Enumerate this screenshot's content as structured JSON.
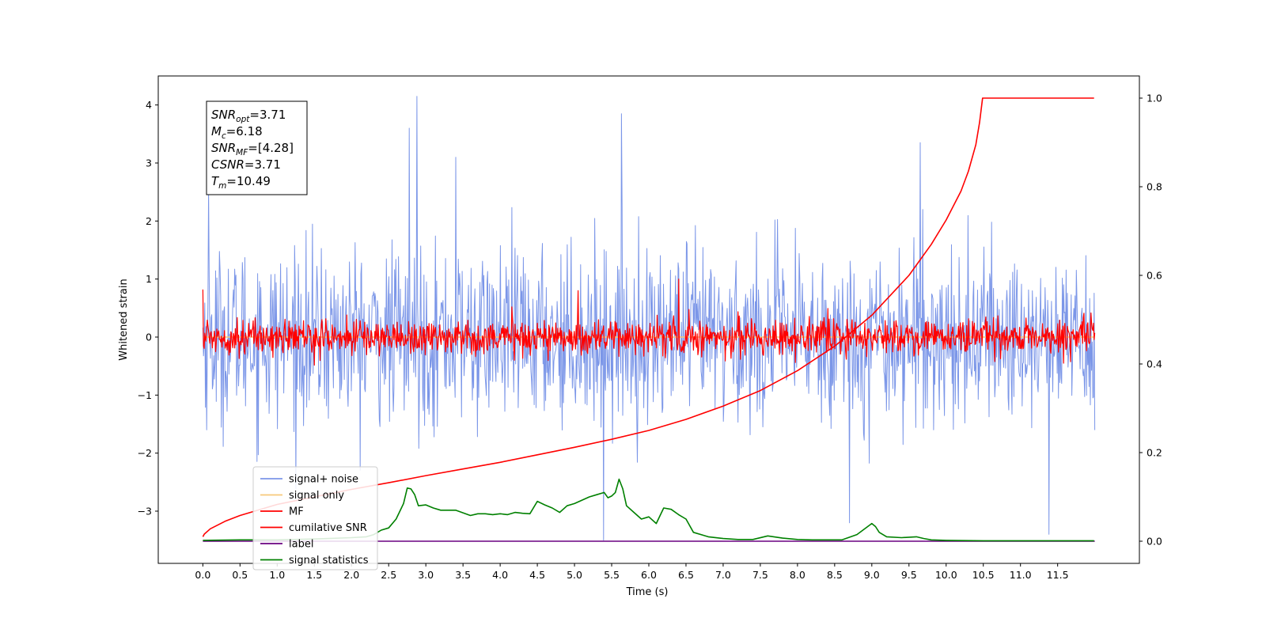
{
  "chart_data": {
    "type": "line",
    "xlabel": "Time (s)",
    "ylabel": "Whitened strain",
    "xlim": [
      -0.6,
      12.6
    ],
    "ylim": [
      -3.9,
      4.5
    ],
    "y2lim": [
      -0.05,
      1.05
    ],
    "x_ticks": [
      0.0,
      0.5,
      1.0,
      1.5,
      2.0,
      2.5,
      3.0,
      3.5,
      4.0,
      4.5,
      5.0,
      5.5,
      6.0,
      6.5,
      7.0,
      7.5,
      8.0,
      8.5,
      9.0,
      9.5,
      10.0,
      10.5,
      11.0,
      11.5
    ],
    "x_tick_labels": [
      "0.0",
      "0.5",
      "1.0",
      "1.5",
      "2.0",
      "2.5",
      "3.0",
      "3.5",
      "4.0",
      "4.5",
      "5.0",
      "5.5",
      "6.0",
      "6.5",
      "7.0",
      "7.5",
      "8.0",
      "8.5",
      "9.0",
      "9.5",
      "10.0",
      "10.5",
      "11.0",
      "11.5"
    ],
    "y_ticks": [
      -3,
      -2,
      -1,
      0,
      1,
      2,
      3,
      4
    ],
    "y_tick_labels": [
      "−3",
      "−2",
      "−1",
      "0",
      "1",
      "2",
      "3",
      "4"
    ],
    "y2_ticks": [
      0.0,
      0.2,
      0.4,
      0.6,
      0.8,
      1.0
    ],
    "y2_tick_labels": [
      "0.0",
      "0.2",
      "0.4",
      "0.6",
      "0.8",
      "1.0"
    ],
    "grid": false,
    "legend_position": "lower-left",
    "stats_box": {
      "lines": [
        {
          "sym": "SNR",
          "sub": "opt",
          "value": "=3.71"
        },
        {
          "sym": "M",
          "sub": "c",
          "value": "=6.18"
        },
        {
          "sym": "SNR",
          "sub": "MF",
          "value": "=[4.28]"
        },
        {
          "sym": "CSNR",
          "sub": "",
          "value": "=3.71"
        },
        {
          "sym": "T",
          "sub": "m",
          "value": "=10.49"
        }
      ]
    },
    "series": [
      {
        "name": "signal+ noise",
        "axis": "left",
        "color": "#7b96e8",
        "style": "noise",
        "x_range": [
          0,
          12
        ],
        "std": 0.75,
        "extremes": [
          [
            2.88,
            4.15
          ],
          [
            5.63,
            3.85
          ],
          [
            2.78,
            3.6
          ],
          [
            5.39,
            -3.5
          ],
          [
            11.38,
            -3.4
          ],
          [
            0.08,
            2.55
          ],
          [
            3.4,
            3.1
          ],
          [
            8.7,
            -3.2
          ],
          [
            9.65,
            3.35
          ]
        ]
      },
      {
        "name": "signal only",
        "axis": "left",
        "color": "#f7c97a",
        "style": "flat",
        "x_range": [
          0,
          12
        ],
        "value": 0.0
      },
      {
        "name": "MF",
        "axis": "left",
        "color": "#ff0000",
        "style": "noise",
        "x_range": [
          0,
          12
        ],
        "std": 0.15,
        "extremes": [
          [
            0.0,
            0.82
          ],
          [
            6.4,
            1.0
          ],
          [
            5.05,
            0.8
          ]
        ]
      },
      {
        "name": "cumilative SNR",
        "axis": "right",
        "color": "#ff0000",
        "style": "line",
        "x": [
          0.0,
          0.02,
          0.1,
          0.3,
          0.5,
          1.0,
          1.5,
          2.0,
          2.5,
          3.0,
          3.5,
          4.0,
          4.5,
          5.0,
          5.5,
          6.0,
          6.5,
          7.0,
          7.5,
          8.0,
          8.5,
          9.0,
          9.5,
          9.8,
          10.0,
          10.2,
          10.3,
          10.4,
          10.45,
          10.49,
          11.0,
          11.5,
          11.99
        ],
        "y": [
          0.01,
          0.016,
          0.028,
          0.045,
          0.058,
          0.083,
          0.1,
          0.117,
          0.132,
          0.148,
          0.163,
          0.178,
          0.195,
          0.212,
          0.23,
          0.25,
          0.275,
          0.305,
          0.34,
          0.385,
          0.44,
          0.51,
          0.6,
          0.67,
          0.725,
          0.79,
          0.835,
          0.895,
          0.945,
          1.0,
          1.0,
          1.0,
          1.0
        ]
      },
      {
        "name": "label",
        "axis": "right",
        "color": "#6a0080",
        "style": "flat",
        "x_range": [
          0,
          12
        ],
        "value": 0.0
      },
      {
        "name": "signal statistics",
        "axis": "right",
        "color": "#008000",
        "style": "line",
        "x": [
          0.0,
          0.5,
          1.0,
          1.5,
          2.0,
          2.2,
          2.3,
          2.4,
          2.5,
          2.6,
          2.7,
          2.75,
          2.8,
          2.85,
          2.9,
          3.0,
          3.1,
          3.2,
          3.4,
          3.6,
          3.7,
          3.8,
          3.9,
          4.0,
          4.1,
          4.2,
          4.3,
          4.4,
          4.5,
          4.6,
          4.7,
          4.8,
          4.9,
          5.0,
          5.2,
          5.3,
          5.4,
          5.45,
          5.5,
          5.55,
          5.6,
          5.65,
          5.7,
          5.8,
          5.9,
          6.0,
          6.1,
          6.2,
          6.3,
          6.4,
          6.5,
          6.6,
          6.8,
          7.0,
          7.2,
          7.4,
          7.6,
          7.8,
          8.0,
          8.2,
          8.4,
          8.6,
          8.8,
          9.0,
          9.05,
          9.1,
          9.2,
          9.4,
          9.6,
          9.7,
          9.8,
          10.0,
          10.5,
          11.0,
          11.5,
          11.99
        ],
        "y": [
          0.002,
          0.003,
          0.003,
          0.005,
          0.008,
          0.01,
          0.015,
          0.025,
          0.03,
          0.05,
          0.085,
          0.12,
          0.118,
          0.105,
          0.08,
          0.082,
          0.075,
          0.07,
          0.07,
          0.058,
          0.062,
          0.062,
          0.06,
          0.062,
          0.06,
          0.065,
          0.063,
          0.062,
          0.09,
          0.082,
          0.075,
          0.065,
          0.08,
          0.085,
          0.1,
          0.105,
          0.11,
          0.098,
          0.102,
          0.11,
          0.14,
          0.118,
          0.08,
          0.065,
          0.05,
          0.055,
          0.04,
          0.075,
          0.072,
          0.06,
          0.05,
          0.02,
          0.01,
          0.006,
          0.004,
          0.004,
          0.012,
          0.007,
          0.004,
          0.003,
          0.003,
          0.003,
          0.015,
          0.04,
          0.033,
          0.02,
          0.01,
          0.008,
          0.01,
          0.006,
          0.003,
          0.002,
          0.001,
          0.001,
          0.001,
          0.001
        ]
      }
    ]
  }
}
